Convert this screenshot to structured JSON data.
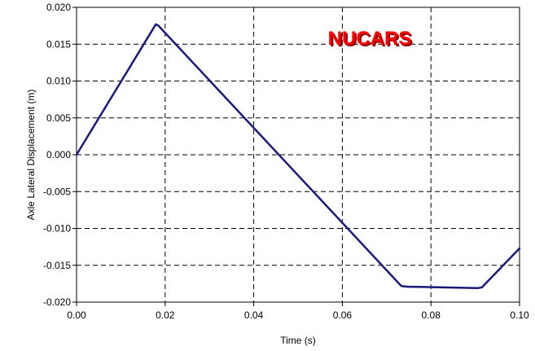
{
  "chart_data": {
    "type": "line",
    "title": "",
    "xlabel": "Time (s)",
    "ylabel": "Axle Lateral Displacement (m)",
    "xlim": [
      0.0,
      0.1
    ],
    "ylim": [
      -0.02,
      0.02
    ],
    "x_ticks": [
      "0.00",
      "0.02",
      "0.04",
      "0.06",
      "0.08",
      "0.10"
    ],
    "y_ticks": [
      "0.020",
      "0.015",
      "0.010",
      "0.005",
      "0.000",
      "-0.005",
      "-0.010",
      "-0.015",
      "-0.020"
    ],
    "grid": true,
    "legend": false,
    "annotation": "NUCARS",
    "colors": {
      "line": "#1a1a7a",
      "annotation": "#ff0000",
      "annotation_shadow": "#8b0000",
      "grid": "#000000"
    },
    "series": [
      {
        "x": [
          0.0,
          0.0179,
          0.0185,
          0.0733,
          0.0745,
          0.0905,
          0.0915,
          0.1
        ],
        "y": [
          0.0,
          0.0177,
          0.0175,
          -0.0178,
          -0.0179,
          -0.0181,
          -0.018,
          -0.0127
        ]
      }
    ]
  }
}
